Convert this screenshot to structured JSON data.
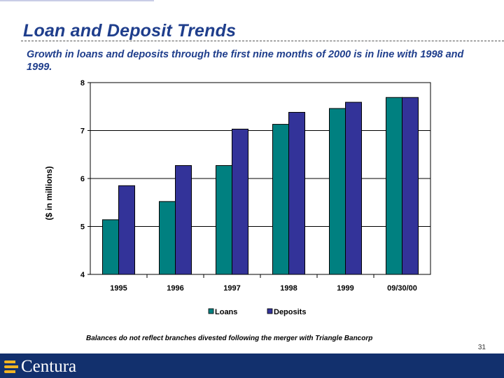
{
  "title": "Loan and Deposit Trends",
  "subtitle": "Growth in loans and deposits through the first nine months of 2000 is in line with 1998 and 1999.",
  "footnote": "Balances do not reflect branches divested following the merger with Triangle Bancorp",
  "page_number": "31",
  "logo": {
    "text": "Centura",
    "icon": "centura-logo-icon"
  },
  "colors": {
    "title": "#1f3e8c",
    "loans": "#008080",
    "deposits": "#333399",
    "footer": "#12306d",
    "logo_accent": "#f0b323"
  },
  "chart_data": {
    "type": "bar",
    "categories": [
      "1995",
      "1996",
      "1997",
      "1998",
      "1999",
      "09/30/00"
    ],
    "series": [
      {
        "name": "Loans",
        "values": [
          5.14,
          5.52,
          6.27,
          7.13,
          7.46,
          7.69
        ]
      },
      {
        "name": "Deposits",
        "values": [
          5.85,
          6.27,
          7.03,
          7.38,
          7.59,
          7.69
        ]
      }
    ],
    "ylabel": "($ in millions)",
    "xlabel": "",
    "ylim": [
      4,
      8
    ],
    "yticks": [
      "4",
      "5",
      "6",
      "7",
      "8"
    ],
    "grid": true,
    "legend": "bottom"
  }
}
